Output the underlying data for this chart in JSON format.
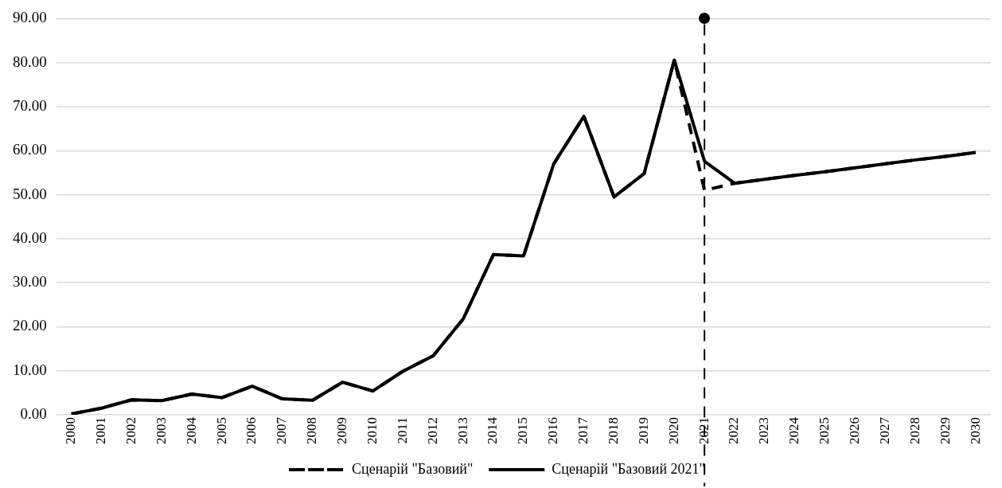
{
  "chart_data": {
    "type": "line",
    "categories": [
      "2000",
      "2001",
      "2002",
      "2003",
      "2004",
      "2005",
      "2006",
      "2007",
      "2008",
      "2009",
      "2010",
      "2011",
      "2012",
      "2013",
      "2014",
      "2015",
      "2016",
      "2017",
      "2018",
      "2019",
      "2020",
      "2021",
      "2022",
      "2023",
      "2024",
      "2025",
      "2026",
      "2027",
      "2028",
      "2029",
      "2030"
    ],
    "series": [
      {
        "name": "Сценарій \"Базовий\"",
        "color": "#000000",
        "line_style": "dashed",
        "values": [
          0.2,
          1.5,
          3.4,
          3.2,
          4.7,
          3.9,
          6.5,
          3.6,
          3.3,
          7.4,
          5.4,
          9.9,
          13.4,
          21.8,
          36.4,
          36.1,
          57.0,
          67.8,
          49.5,
          54.8,
          80.6,
          51.0,
          52.6,
          53.5,
          54.4,
          55.2,
          56.1,
          57.0,
          57.9,
          58.7,
          59.6
        ]
      },
      {
        "name": "Сценарій \"Базовий 2021\"",
        "color": "#000000",
        "line_style": "solid",
        "values": [
          0.2,
          1.5,
          3.4,
          3.2,
          4.7,
          3.9,
          6.5,
          3.6,
          3.3,
          7.4,
          5.4,
          9.9,
          13.4,
          21.8,
          36.4,
          36.1,
          57.0,
          67.8,
          49.5,
          54.8,
          80.6,
          57.6,
          52.6,
          53.5,
          54.4,
          55.2,
          56.1,
          57.0,
          57.9,
          58.7,
          59.6
        ]
      }
    ],
    "ylim": [
      0,
      90
    ],
    "yticks": [
      {
        "value": 0,
        "label": "0.00"
      },
      {
        "value": 10,
        "label": "10.00"
      },
      {
        "value": 20,
        "label": "20.00"
      },
      {
        "value": 30,
        "label": "30.00"
      },
      {
        "value": 40,
        "label": "40.00"
      },
      {
        "value": 50,
        "label": "50.00"
      },
      {
        "value": 60,
        "label": "60.00"
      },
      {
        "value": 70,
        "label": "70.00"
      },
      {
        "value": 80,
        "label": "80.00"
      },
      {
        "value": 90,
        "label": "90.00"
      }
    ],
    "grid": "y",
    "legend": "bottom",
    "marker": "none",
    "ref_lines": [
      {
        "axis": "x",
        "value": "2021",
        "color": "#000000",
        "line_style": "dashed"
      }
    ]
  }
}
